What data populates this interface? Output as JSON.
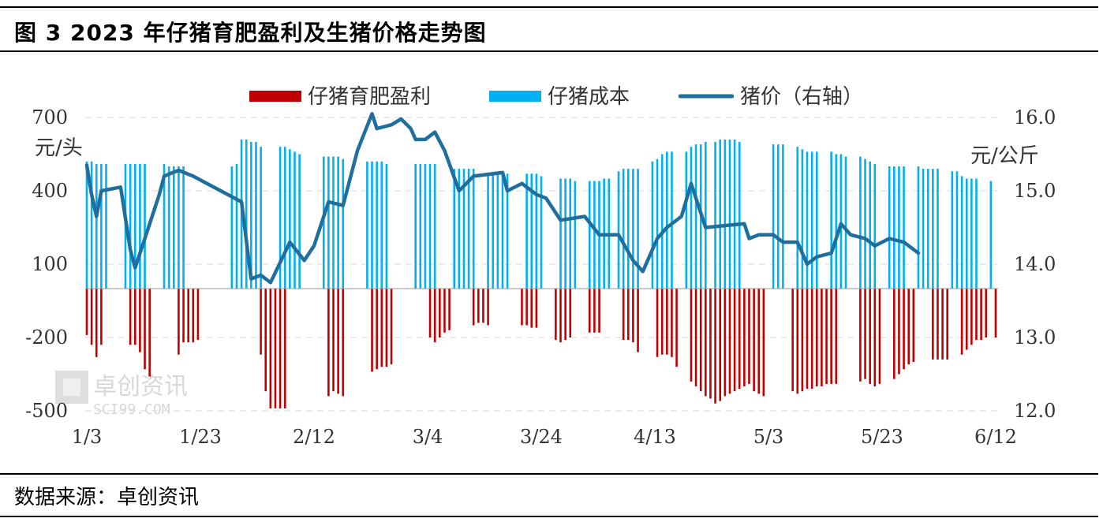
{
  "header": {
    "title": "图 3 2023 年仔猪育肥盈利及生猪价格走势图"
  },
  "footer": {
    "source": "数据来源：卓创资讯"
  },
  "watermark": {
    "text": "卓创资讯",
    "sub": "SCI99.COM"
  },
  "chart_data": {
    "type": "bar",
    "left_axis": {
      "unit": "元/头",
      "ylim": [
        -500,
        700
      ],
      "ticks": [
        "700",
        "400",
        "100",
        "-200",
        "-500"
      ],
      "tick_values": [
        700,
        400,
        100,
        -200,
        -500
      ]
    },
    "right_axis": {
      "unit": "元/公斤",
      "ylim": [
        12.0,
        16.0
      ],
      "ticks": [
        "16.0",
        "15.0",
        "14.0",
        "13.0",
        "12.0"
      ],
      "tick_values": [
        16.0,
        15.0,
        14.0,
        13.0,
        12.0
      ]
    },
    "x_ticks": [
      "1/3",
      "1/23",
      "2/12",
      "3/4",
      "3/24",
      "4/13",
      "5/3",
      "5/23",
      "6/12"
    ],
    "legend": [
      {
        "name": "仔猪育肥盈利",
        "color": "#c00000",
        "kind": "bar"
      },
      {
        "name": "仔猪成本",
        "color": "#00b0f0",
        "kind": "bar"
      },
      {
        "name": "猪价（右轴）",
        "color": "#1f6e9c",
        "kind": "line"
      }
    ],
    "grid": true,
    "legend_position": "top",
    "series": [
      {
        "name": "仔猪育肥盈利",
        "axis": "left",
        "points": [
          [
            0,
            -190
          ],
          [
            1,
            -230
          ],
          [
            2,
            -280
          ],
          [
            3,
            -230
          ],
          [
            9,
            -230
          ],
          [
            10,
            -230
          ],
          [
            11,
            -260
          ],
          [
            12,
            -330
          ],
          [
            13,
            -360
          ],
          [
            19,
            -270
          ],
          [
            20,
            -220
          ],
          [
            21,
            -220
          ],
          [
            22,
            -220
          ],
          [
            23,
            -210
          ],
          [
            36,
            -270
          ],
          [
            37,
            -420
          ],
          [
            38,
            -490
          ],
          [
            39,
            -490
          ],
          [
            40,
            -490
          ],
          [
            41,
            -490
          ],
          [
            50,
            -440
          ],
          [
            51,
            -420
          ],
          [
            52,
            -430
          ],
          [
            53,
            -440
          ],
          [
            59,
            -340
          ],
          [
            60,
            -330
          ],
          [
            61,
            -320
          ],
          [
            62,
            -320
          ],
          [
            63,
            -310
          ],
          [
            71,
            -200
          ],
          [
            72,
            -220
          ],
          [
            73,
            -200
          ],
          [
            74,
            -180
          ],
          [
            75,
            -170
          ],
          [
            80,
            -150
          ],
          [
            81,
            -140
          ],
          [
            82,
            -140
          ],
          [
            83,
            -150
          ],
          [
            90,
            -150
          ],
          [
            91,
            -150
          ],
          [
            92,
            -160
          ],
          [
            93,
            -160
          ],
          [
            97,
            -210
          ],
          [
            98,
            -220
          ],
          [
            99,
            -210
          ],
          [
            100,
            -200
          ],
          [
            104,
            -180
          ],
          [
            105,
            -180
          ],
          [
            106,
            -180
          ],
          [
            111,
            -210
          ],
          [
            112,
            -210
          ],
          [
            113,
            -220
          ],
          [
            114,
            -260
          ],
          [
            118,
            -280
          ],
          [
            119,
            -270
          ],
          [
            120,
            -270
          ],
          [
            121,
            -280
          ],
          [
            122,
            -320
          ],
          [
            125,
            -380
          ],
          [
            126,
            -400
          ],
          [
            127,
            -420
          ],
          [
            128,
            -440
          ],
          [
            129,
            -450
          ],
          [
            130,
            -470
          ],
          [
            131,
            -460
          ],
          [
            132,
            -440
          ],
          [
            133,
            -430
          ],
          [
            134,
            -420
          ],
          [
            135,
            -410
          ],
          [
            136,
            -400
          ],
          [
            137,
            -390
          ],
          [
            138,
            -420
          ],
          [
            139,
            -430
          ],
          [
            140,
            -440
          ],
          [
            146,
            -420
          ],
          [
            147,
            -430
          ],
          [
            148,
            -420
          ],
          [
            149,
            -410
          ],
          [
            150,
            -410
          ],
          [
            151,
            -400
          ],
          [
            152,
            -400
          ],
          [
            153,
            -390
          ],
          [
            154,
            -390
          ],
          [
            155,
            -390
          ],
          [
            160,
            -380
          ],
          [
            161,
            -370
          ],
          [
            162,
            -390
          ],
          [
            163,
            -400
          ],
          [
            164,
            -390
          ],
          [
            167,
            -370
          ],
          [
            168,
            -350
          ],
          [
            169,
            -330
          ],
          [
            170,
            -310
          ],
          [
            171,
            -300
          ],
          [
            175,
            -290
          ],
          [
            176,
            -290
          ],
          [
            177,
            -290
          ],
          [
            178,
            -290
          ],
          [
            181,
            -270
          ],
          [
            182,
            -250
          ],
          [
            183,
            -230
          ],
          [
            184,
            -210
          ],
          [
            185,
            -210
          ],
          [
            186,
            -200
          ],
          [
            188,
            -200
          ]
        ]
      },
      {
        "name": "仔猪成本",
        "axis": "left",
        "points": [
          [
            0,
            520
          ],
          [
            1,
            520
          ],
          [
            2,
            510
          ],
          [
            3,
            510
          ],
          [
            4,
            510
          ],
          [
            8,
            510
          ],
          [
            9,
            510
          ],
          [
            10,
            510
          ],
          [
            11,
            510
          ],
          [
            12,
            510
          ],
          [
            16,
            510
          ],
          [
            17,
            500
          ],
          [
            18,
            500
          ],
          [
            19,
            500
          ],
          [
            20,
            500
          ],
          [
            30,
            500
          ],
          [
            31,
            510
          ],
          [
            32,
            610
          ],
          [
            33,
            610
          ],
          [
            34,
            600
          ],
          [
            35,
            600
          ],
          [
            36,
            580
          ],
          [
            40,
            580
          ],
          [
            41,
            580
          ],
          [
            42,
            570
          ],
          [
            43,
            560
          ],
          [
            44,
            550
          ],
          [
            49,
            540
          ],
          [
            50,
            540
          ],
          [
            51,
            540
          ],
          [
            52,
            540
          ],
          [
            53,
            530
          ],
          [
            58,
            520
          ],
          [
            59,
            520
          ],
          [
            60,
            520
          ],
          [
            61,
            520
          ],
          [
            62,
            510
          ],
          [
            68,
            510
          ],
          [
            69,
            510
          ],
          [
            70,
            510
          ],
          [
            71,
            510
          ],
          [
            72,
            510
          ],
          [
            76,
            490
          ],
          [
            77,
            490
          ],
          [
            78,
            490
          ],
          [
            79,
            490
          ],
          [
            80,
            490
          ],
          [
            83,
            470
          ],
          [
            84,
            470
          ],
          [
            85,
            470
          ],
          [
            86,
            470
          ],
          [
            87,
            470
          ],
          [
            91,
            470
          ],
          [
            92,
            470
          ],
          [
            93,
            470
          ],
          [
            94,
            460
          ],
          [
            98,
            450
          ],
          [
            99,
            450
          ],
          [
            100,
            450
          ],
          [
            101,
            440
          ],
          [
            104,
            440
          ],
          [
            105,
            440
          ],
          [
            106,
            440
          ],
          [
            107,
            450
          ],
          [
            108,
            450
          ],
          [
            110,
            480
          ],
          [
            111,
            490
          ],
          [
            112,
            490
          ],
          [
            113,
            490
          ],
          [
            114,
            490
          ],
          [
            117,
            520
          ],
          [
            118,
            530
          ],
          [
            119,
            550
          ],
          [
            120,
            560
          ],
          [
            121,
            560
          ],
          [
            124,
            560
          ],
          [
            125,
            580
          ],
          [
            126,
            590
          ],
          [
            127,
            590
          ],
          [
            128,
            600
          ],
          [
            130,
            600
          ],
          [
            131,
            610
          ],
          [
            132,
            610
          ],
          [
            133,
            610
          ],
          [
            134,
            610
          ],
          [
            135,
            600
          ],
          [
            142,
            590
          ],
          [
            143,
            590
          ],
          [
            144,
            590
          ],
          [
            147,
            580
          ],
          [
            148,
            570
          ],
          [
            149,
            560
          ],
          [
            150,
            560
          ],
          [
            151,
            560
          ],
          [
            154,
            560
          ],
          [
            155,
            550
          ],
          [
            156,
            550
          ],
          [
            157,
            540
          ],
          [
            160,
            540
          ],
          [
            161,
            530
          ],
          [
            162,
            520
          ],
          [
            163,
            510
          ],
          [
            166,
            500
          ],
          [
            167,
            500
          ],
          [
            168,
            500
          ],
          [
            169,
            500
          ],
          [
            172,
            500
          ],
          [
            173,
            490
          ],
          [
            174,
            490
          ],
          [
            175,
            490
          ],
          [
            176,
            490
          ],
          [
            179,
            480
          ],
          [
            180,
            480
          ],
          [
            181,
            460
          ],
          [
            182,
            450
          ],
          [
            183,
            450
          ],
          [
            184,
            450
          ],
          [
            187,
            440
          ]
        ]
      },
      {
        "name": "猪价（右轴）",
        "axis": "right",
        "points": [
          [
            0,
            15.35
          ],
          [
            1,
            14.95
          ],
          [
            2,
            14.65
          ],
          [
            3,
            15.0
          ],
          [
            7,
            15.05
          ],
          [
            9,
            14.2
          ],
          [
            10,
            13.95
          ],
          [
            13,
            14.55
          ],
          [
            15,
            14.95
          ],
          [
            16,
            15.2
          ],
          [
            19,
            15.28
          ],
          [
            22,
            15.2
          ],
          [
            32,
            14.85
          ],
          [
            34,
            13.8
          ],
          [
            36,
            13.85
          ],
          [
            38,
            13.75
          ],
          [
            42,
            14.3
          ],
          [
            45,
            14.05
          ],
          [
            47,
            14.25
          ],
          [
            50,
            14.85
          ],
          [
            53,
            14.8
          ],
          [
            56,
            15.55
          ],
          [
            59,
            16.05
          ],
          [
            60,
            15.85
          ],
          [
            63,
            15.9
          ],
          [
            65,
            15.98
          ],
          [
            67,
            15.85
          ],
          [
            68,
            15.7
          ],
          [
            70,
            15.7
          ],
          [
            72,
            15.8
          ],
          [
            74,
            15.55
          ],
          [
            77,
            15.0
          ],
          [
            80,
            15.2
          ],
          [
            86,
            15.25
          ],
          [
            87,
            15.0
          ],
          [
            90,
            15.1
          ],
          [
            93,
            14.95
          ],
          [
            95,
            14.9
          ],
          [
            98,
            14.6
          ],
          [
            103,
            14.65
          ],
          [
            106,
            14.4
          ],
          [
            110,
            14.4
          ],
          [
            113,
            14.05
          ],
          [
            115,
            13.9
          ],
          [
            118,
            14.35
          ],
          [
            120,
            14.5
          ],
          [
            123,
            14.65
          ],
          [
            125,
            15.1
          ],
          [
            128,
            14.5
          ],
          [
            136,
            14.55
          ],
          [
            137,
            14.35
          ],
          [
            139,
            14.4
          ],
          [
            142,
            14.4
          ],
          [
            144,
            14.3
          ],
          [
            147,
            14.3
          ],
          [
            149,
            14.0
          ],
          [
            151,
            14.1
          ],
          [
            154,
            14.15
          ],
          [
            156,
            14.55
          ],
          [
            158,
            14.4
          ],
          [
            161,
            14.35
          ],
          [
            163,
            14.25
          ],
          [
            166,
            14.35
          ],
          [
            169,
            14.3
          ],
          [
            172,
            14.15
          ]
        ]
      }
    ]
  }
}
